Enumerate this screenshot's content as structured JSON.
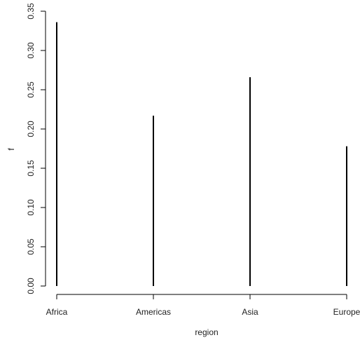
{
  "chart_data": {
    "type": "bar",
    "style": "vertical lines (R type='h')",
    "xlabel": "region",
    "ylabel": "f",
    "categories": [
      "Africa",
      "Americas",
      "Asia",
      "Europe"
    ],
    "values": [
      0.336,
      0.217,
      0.266,
      0.178
    ],
    "ylim": [
      0,
      0.35
    ],
    "yticks": [
      "0.00",
      "0.05",
      "0.10",
      "0.15",
      "0.20",
      "0.25",
      "0.30",
      "0.35"
    ],
    "grid": false,
    "line_color": "#000000"
  }
}
